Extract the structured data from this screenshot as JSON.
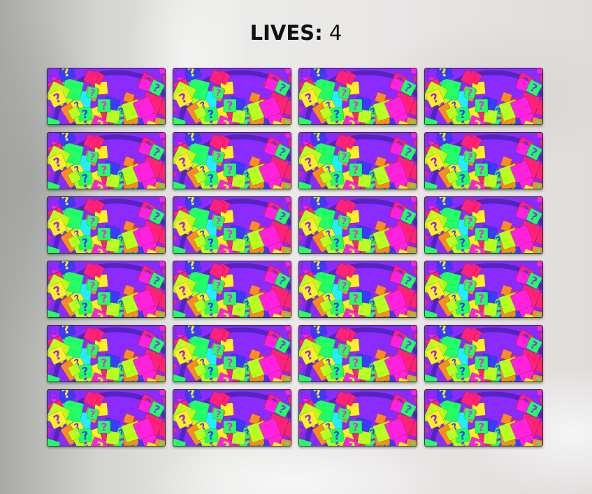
{
  "hud": {
    "lives_label": "LIVES:",
    "lives_value": "4"
  },
  "board": {
    "rows": 6,
    "columns": 4,
    "card_back_icon": "question-mark-pattern",
    "card_back_colors": [
      "#ff22dd",
      "#22ff66",
      "#ffee22",
      "#22eeff",
      "#8a2cff",
      "#3b3bff",
      "#ff2277",
      "#ff8a1e",
      "#b6ff1e"
    ]
  }
}
